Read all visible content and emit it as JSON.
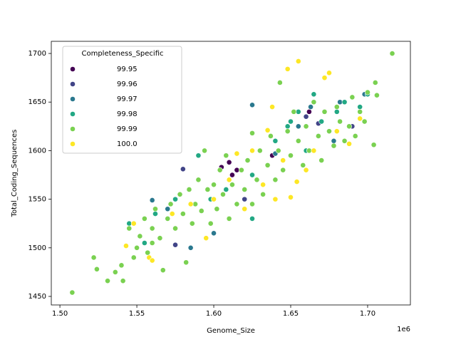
{
  "chart_data": {
    "type": "scatter",
    "x_label": "Genome_Size",
    "y_label": "Total_Coding_Sequences",
    "x_offset_label": "1e6",
    "legend_title": "Completeness_Specific",
    "legend": "upper left",
    "xlim": [
      1494400,
      1727800
    ],
    "ylim": [
      1441.2,
      1712.5
    ],
    "xticks": [
      {
        "value": 1500000,
        "label": "1.50"
      },
      {
        "value": 1550000,
        "label": "1.55"
      },
      {
        "value": 1600000,
        "label": "1.60"
      },
      {
        "value": 1650000,
        "label": "1.65"
      },
      {
        "value": 1700000,
        "label": "1.70"
      }
    ],
    "yticks": [
      1450,
      1500,
      1550,
      1600,
      1650,
      1700
    ],
    "series": [
      {
        "name": "99.95",
        "color": "#440154",
        "x": [
          1610000,
          1612000,
          1615000,
          1638000,
          1605000,
          1662000
        ],
        "values": [
          1588,
          1575,
          1580,
          1595,
          1583,
          1640
        ]
      },
      {
        "name": "99.96",
        "color": "#414487",
        "x": [
          1580000,
          1660000,
          1668000,
          1690000,
          1575000,
          1620000
        ],
        "values": [
          1581,
          1635,
          1628,
          1625,
          1503,
          1550
        ]
      },
      {
        "name": "99.97",
        "color": "#2a788e",
        "x": [
          1625000,
          1560000,
          1585000,
          1640000,
          1655000,
          1663000,
          1682000,
          1698000,
          1640000,
          1600000,
          1570000,
          1678000
        ],
        "values": [
          1647,
          1549,
          1500,
          1570,
          1625,
          1645,
          1650,
          1658,
          1597,
          1515,
          1540,
          1610
        ]
      },
      {
        "name": "99.98",
        "color": "#22a884",
        "x": [
          1545000,
          1555000,
          1562000,
          1575000,
          1590000,
          1598000,
          1608000,
          1625000,
          1640000,
          1650000,
          1655000,
          1660000,
          1665000,
          1670000,
          1680000,
          1685000,
          1695000,
          1700000,
          1625000,
          1648000
        ],
        "values": [
          1525,
          1505,
          1535,
          1550,
          1595,
          1550,
          1560,
          1575,
          1610,
          1630,
          1640,
          1600,
          1658,
          1630,
          1640,
          1650,
          1645,
          1658,
          1530,
          1625
        ]
      },
      {
        "name": "99.99",
        "color": "#7ad151",
        "x": [
          1508000,
          1522000,
          1524000,
          1531000,
          1536000,
          1540000,
          1541000,
          1545000,
          1548000,
          1550000,
          1552000,
          1555000,
          1557000,
          1560000,
          1562000,
          1565000,
          1567000,
          1570000,
          1572000,
          1575000,
          1578000,
          1580000,
          1582000,
          1584000,
          1586000,
          1588000,
          1590000,
          1592000,
          1594000,
          1596000,
          1598000,
          1600000,
          1602000,
          1604000,
          1606000,
          1608000,
          1610000,
          1612000,
          1615000,
          1618000,
          1620000,
          1622000,
          1625000,
          1628000,
          1630000,
          1632000,
          1635000,
          1637000,
          1640000,
          1642000,
          1645000,
          1648000,
          1650000,
          1652000,
          1655000,
          1658000,
          1660000,
          1662000,
          1665000,
          1668000,
          1670000,
          1672000,
          1675000,
          1678000,
          1680000,
          1682000,
          1685000,
          1688000,
          1690000,
          1692000,
          1695000,
          1698000,
          1700000,
          1704000,
          1705000,
          1706000,
          1716000,
          1643000,
          1625000,
          1560000
        ],
        "values": [
          1454,
          1490,
          1478,
          1466,
          1475,
          1482,
          1466,
          1520,
          1490,
          1500,
          1512,
          1530,
          1495,
          1520,
          1540,
          1510,
          1477,
          1530,
          1545,
          1520,
          1555,
          1535,
          1485,
          1560,
          1525,
          1545,
          1570,
          1538,
          1600,
          1560,
          1525,
          1565,
          1540,
          1580,
          1555,
          1595,
          1530,
          1565,
          1545,
          1580,
          1560,
          1590,
          1545,
          1570,
          1600,
          1555,
          1585,
          1615,
          1570,
          1600,
          1580,
          1620,
          1595,
          1640,
          1610,
          1585,
          1625,
          1600,
          1650,
          1615,
          1590,
          1640,
          1620,
          1605,
          1645,
          1630,
          1610,
          1625,
          1655,
          1615,
          1640,
          1630,
          1660,
          1606,
          1670,
          1657,
          1700,
          1670,
          1618,
          1505
        ]
      },
      {
        "name": "100.0",
        "color": "#fde725",
        "x": [
          1543000,
          1548000,
          1558000,
          1560000,
          1573000,
          1585000,
          1595000,
          1600000,
          1610000,
          1615000,
          1620000,
          1625000,
          1632000,
          1635000,
          1640000,
          1645000,
          1648000,
          1650000,
          1655000,
          1660000,
          1665000,
          1672000,
          1675000,
          1680000,
          1688000,
          1695000,
          1654000,
          1638000
        ],
        "values": [
          1502,
          1525,
          1490,
          1487,
          1535,
          1545,
          1510,
          1550,
          1570,
          1597,
          1540,
          1600,
          1565,
          1621,
          1550,
          1590,
          1684,
          1552,
          1692,
          1580,
          1600,
          1675,
          1680,
          1620,
          1607,
          1633,
          1568,
          1645
        ]
      }
    ]
  }
}
